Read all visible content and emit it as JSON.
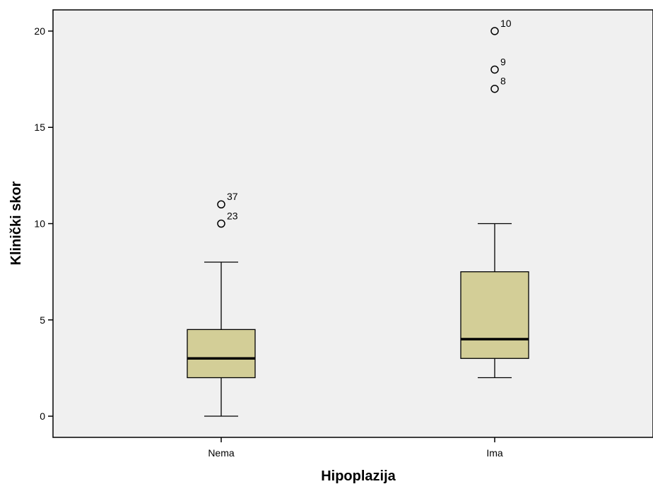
{
  "chart_data": {
    "type": "boxplot",
    "xlabel": "Hipoplazija",
    "ylabel": "Klinički skor",
    "ylim": [
      -1.1,
      21.1
    ],
    "yticks": [
      0,
      5,
      10,
      15,
      20
    ],
    "grid": false,
    "plot_background": "#f0f0f0",
    "box_fill": "#d3ce97",
    "categories": [
      "Nema",
      "Ima"
    ],
    "boxes": [
      {
        "category": "Nema",
        "whisker_low": 0,
        "q1": 2,
        "median": 3,
        "q3": 4.5,
        "whisker_high": 8,
        "outliers": [
          {
            "value": 10,
            "label": "23"
          },
          {
            "value": 11,
            "label": "37"
          }
        ]
      },
      {
        "category": "Ima",
        "whisker_low": 2,
        "q1": 3,
        "median": 4,
        "q3": 7.5,
        "whisker_high": 10,
        "outliers": [
          {
            "value": 17,
            "label": "8"
          },
          {
            "value": 18,
            "label": "9"
          },
          {
            "value": 20,
            "label": "10"
          }
        ]
      }
    ]
  }
}
